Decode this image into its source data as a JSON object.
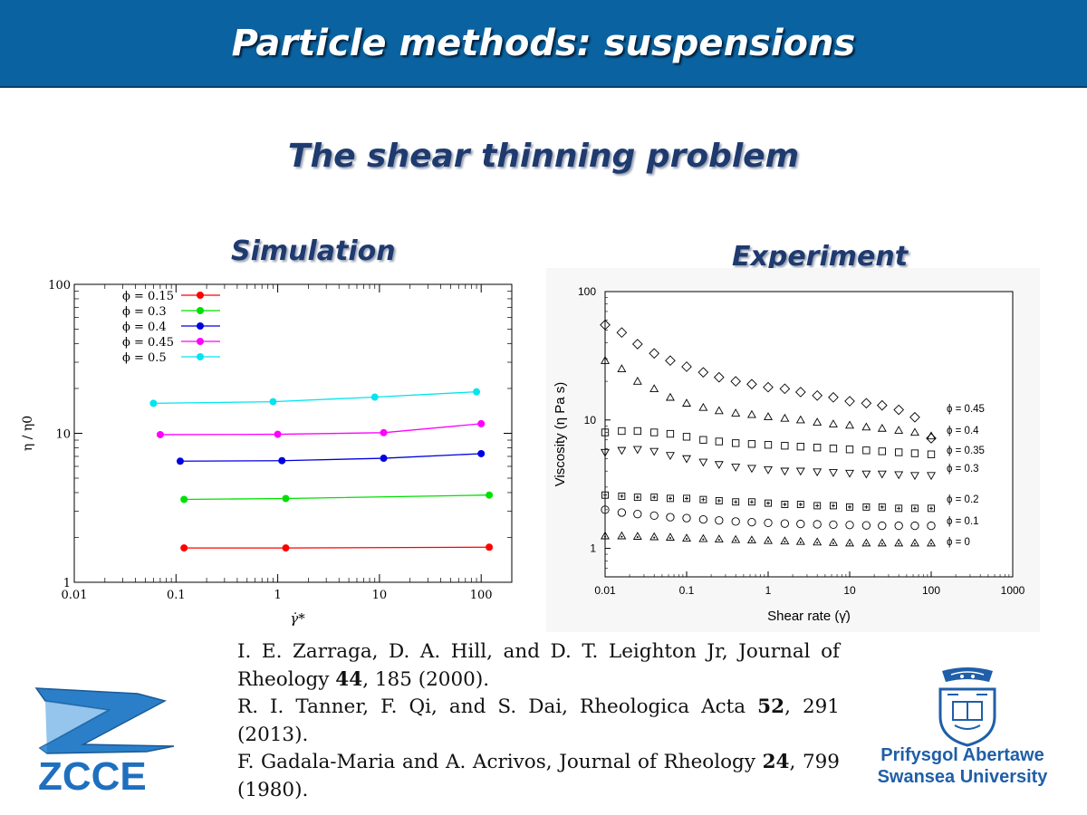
{
  "header": {
    "title": "Particle methods: suspensions"
  },
  "subtitle": "The shear thinning problem",
  "panels": {
    "simulation_title": "Simulation",
    "experiment_title": "Experiment"
  },
  "chart_data": [
    {
      "id": "simulation",
      "type": "line",
      "xlabel": "γ̇*",
      "ylabel": "η / η0",
      "x_scale": "log",
      "y_scale": "log",
      "xlim": [
        0.01,
        200
      ],
      "ylim": [
        1,
        100
      ],
      "x_ticks": [
        "0.01",
        "0.1",
        "1",
        "10",
        "100"
      ],
      "y_ticks": [
        "1",
        "10",
        "100"
      ],
      "legend_position": "top-left",
      "series": [
        {
          "name": "ϕ = 0.15",
          "color": "#ff0000",
          "points": [
            [
              0.12,
              1.7
            ],
            [
              1.2,
              1.7
            ],
            [
              120,
              1.72
            ]
          ]
        },
        {
          "name": "ϕ =  0.3",
          "color": "#00e000",
          "points": [
            [
              0.12,
              3.6
            ],
            [
              1.2,
              3.65
            ],
            [
              120,
              3.85
            ]
          ]
        },
        {
          "name": "ϕ =  0.4",
          "color": "#0000e0",
          "points": [
            [
              0.11,
              6.5
            ],
            [
              1.1,
              6.55
            ],
            [
              11,
              6.8
            ],
            [
              100,
              7.3
            ]
          ]
        },
        {
          "name": "ϕ = 0.45",
          "color": "#ff00ff",
          "points": [
            [
              0.07,
              9.8
            ],
            [
              1.0,
              9.85
            ],
            [
              11,
              10.1
            ],
            [
              100,
              11.6
            ]
          ]
        },
        {
          "name": "ϕ =  0.5",
          "color": "#00e5ee",
          "points": [
            [
              0.06,
              15.9
            ],
            [
              0.9,
              16.3
            ],
            [
              9,
              17.5
            ],
            [
              90,
              19
            ]
          ]
        }
      ]
    },
    {
      "id": "experiment",
      "type": "scatter",
      "xlabel": "Shear rate (γ̇)",
      "ylabel": "Viscosity (η Pa s)",
      "x_scale": "log",
      "y_scale": "log",
      "xlim": [
        0.01,
        1000
      ],
      "ylim": [
        0.6,
        100
      ],
      "x_ticks": [
        "0.01",
        "0.1",
        "1",
        "10",
        "100",
        "1000"
      ],
      "y_ticks": [
        "1",
        "10",
        "100"
      ],
      "x": [
        0.01,
        0.016,
        0.025,
        0.04,
        0.063,
        0.1,
        0.16,
        0.25,
        0.4,
        0.63,
        1,
        1.6,
        2.5,
        4,
        6.3,
        10,
        16,
        25,
        40,
        63,
        100
      ],
      "series": [
        {
          "name": "ϕ = 0.45",
          "marker": "diamond",
          "values": [
            55,
            48,
            39,
            33,
            29,
            26,
            23.5,
            21.5,
            20,
            19,
            18,
            17.5,
            16.5,
            15.5,
            15,
            14,
            13.5,
            13,
            12,
            10.5,
            7.2
          ]
        },
        {
          "name": "ϕ = 0.4",
          "marker": "triangle-up",
          "values": [
            29,
            25,
            20,
            17.5,
            15,
            13.5,
            12.5,
            11.8,
            11.3,
            11,
            10.6,
            10.3,
            10,
            9.6,
            9.3,
            9.1,
            8.8,
            8.6,
            8.3,
            8,
            7.5
          ]
        },
        {
          "name": "ϕ = 0.35",
          "marker": "square",
          "values": [
            8,
            8.2,
            8.2,
            8,
            7.8,
            7.4,
            7,
            6.8,
            6.6,
            6.5,
            6.4,
            6.3,
            6.2,
            6.1,
            6,
            5.9,
            5.8,
            5.7,
            5.6,
            5.5,
            5.4
          ]
        },
        {
          "name": "ϕ = 0.3",
          "marker": "triangle-down",
          "values": [
            5.6,
            5.8,
            5.9,
            5.7,
            5.3,
            5.0,
            4.7,
            4.5,
            4.3,
            4.2,
            4.1,
            4.0,
            4.0,
            3.95,
            3.9,
            3.85,
            3.8,
            3.8,
            3.75,
            3.7,
            3.7
          ]
        },
        {
          "name": "ϕ = 0.2",
          "marker": "boxed-plus",
          "values": [
            2.6,
            2.55,
            2.5,
            2.5,
            2.45,
            2.45,
            2.4,
            2.35,
            2.3,
            2.3,
            2.25,
            2.2,
            2.2,
            2.15,
            2.15,
            2.1,
            2.1,
            2.1,
            2.05,
            2.05,
            2.05
          ]
        },
        {
          "name": "ϕ = 0.1",
          "marker": "circle",
          "values": [
            2.0,
            1.9,
            1.85,
            1.8,
            1.75,
            1.72,
            1.68,
            1.65,
            1.62,
            1.6,
            1.58,
            1.56,
            1.55,
            1.54,
            1.53,
            1.52,
            1.51,
            1.5,
            1.5,
            1.5,
            1.5
          ]
        },
        {
          "name": "ϕ = 0",
          "marker": "triangle-dot",
          "values": [
            1.25,
            1.25,
            1.24,
            1.23,
            1.22,
            1.2,
            1.19,
            1.18,
            1.17,
            1.16,
            1.15,
            1.14,
            1.13,
            1.12,
            1.11,
            1.1,
            1.1,
            1.1,
            1.1,
            1.1,
            1.1
          ]
        }
      ]
    }
  ],
  "references": [
    {
      "authors": "I. E. Zarraga, D. A. Hill, and D. T. Leighton Jr, Journal of Rheology",
      "volume": "44",
      "rest": ", 185 (2000)."
    },
    {
      "authors": "R. I. Tanner, F. Qi, and S. Dai, Rheologica Acta",
      "volume": "52",
      "rest": ", 291 (2013)."
    },
    {
      "authors": "F. Gadala-Maria and A. Acrivos, Journal of Rheology",
      "volume": "24",
      "rest": ", 799 (1980)."
    }
  ],
  "logos": {
    "zcce_text": "ZCCE",
    "university_name_line1": "Prifysgol Abertawe",
    "university_name_line2": "Swansea University"
  },
  "colors": {
    "banner": "#0a63a0",
    "heading": "#1f3a6e",
    "university": "#1f5fa8"
  }
}
